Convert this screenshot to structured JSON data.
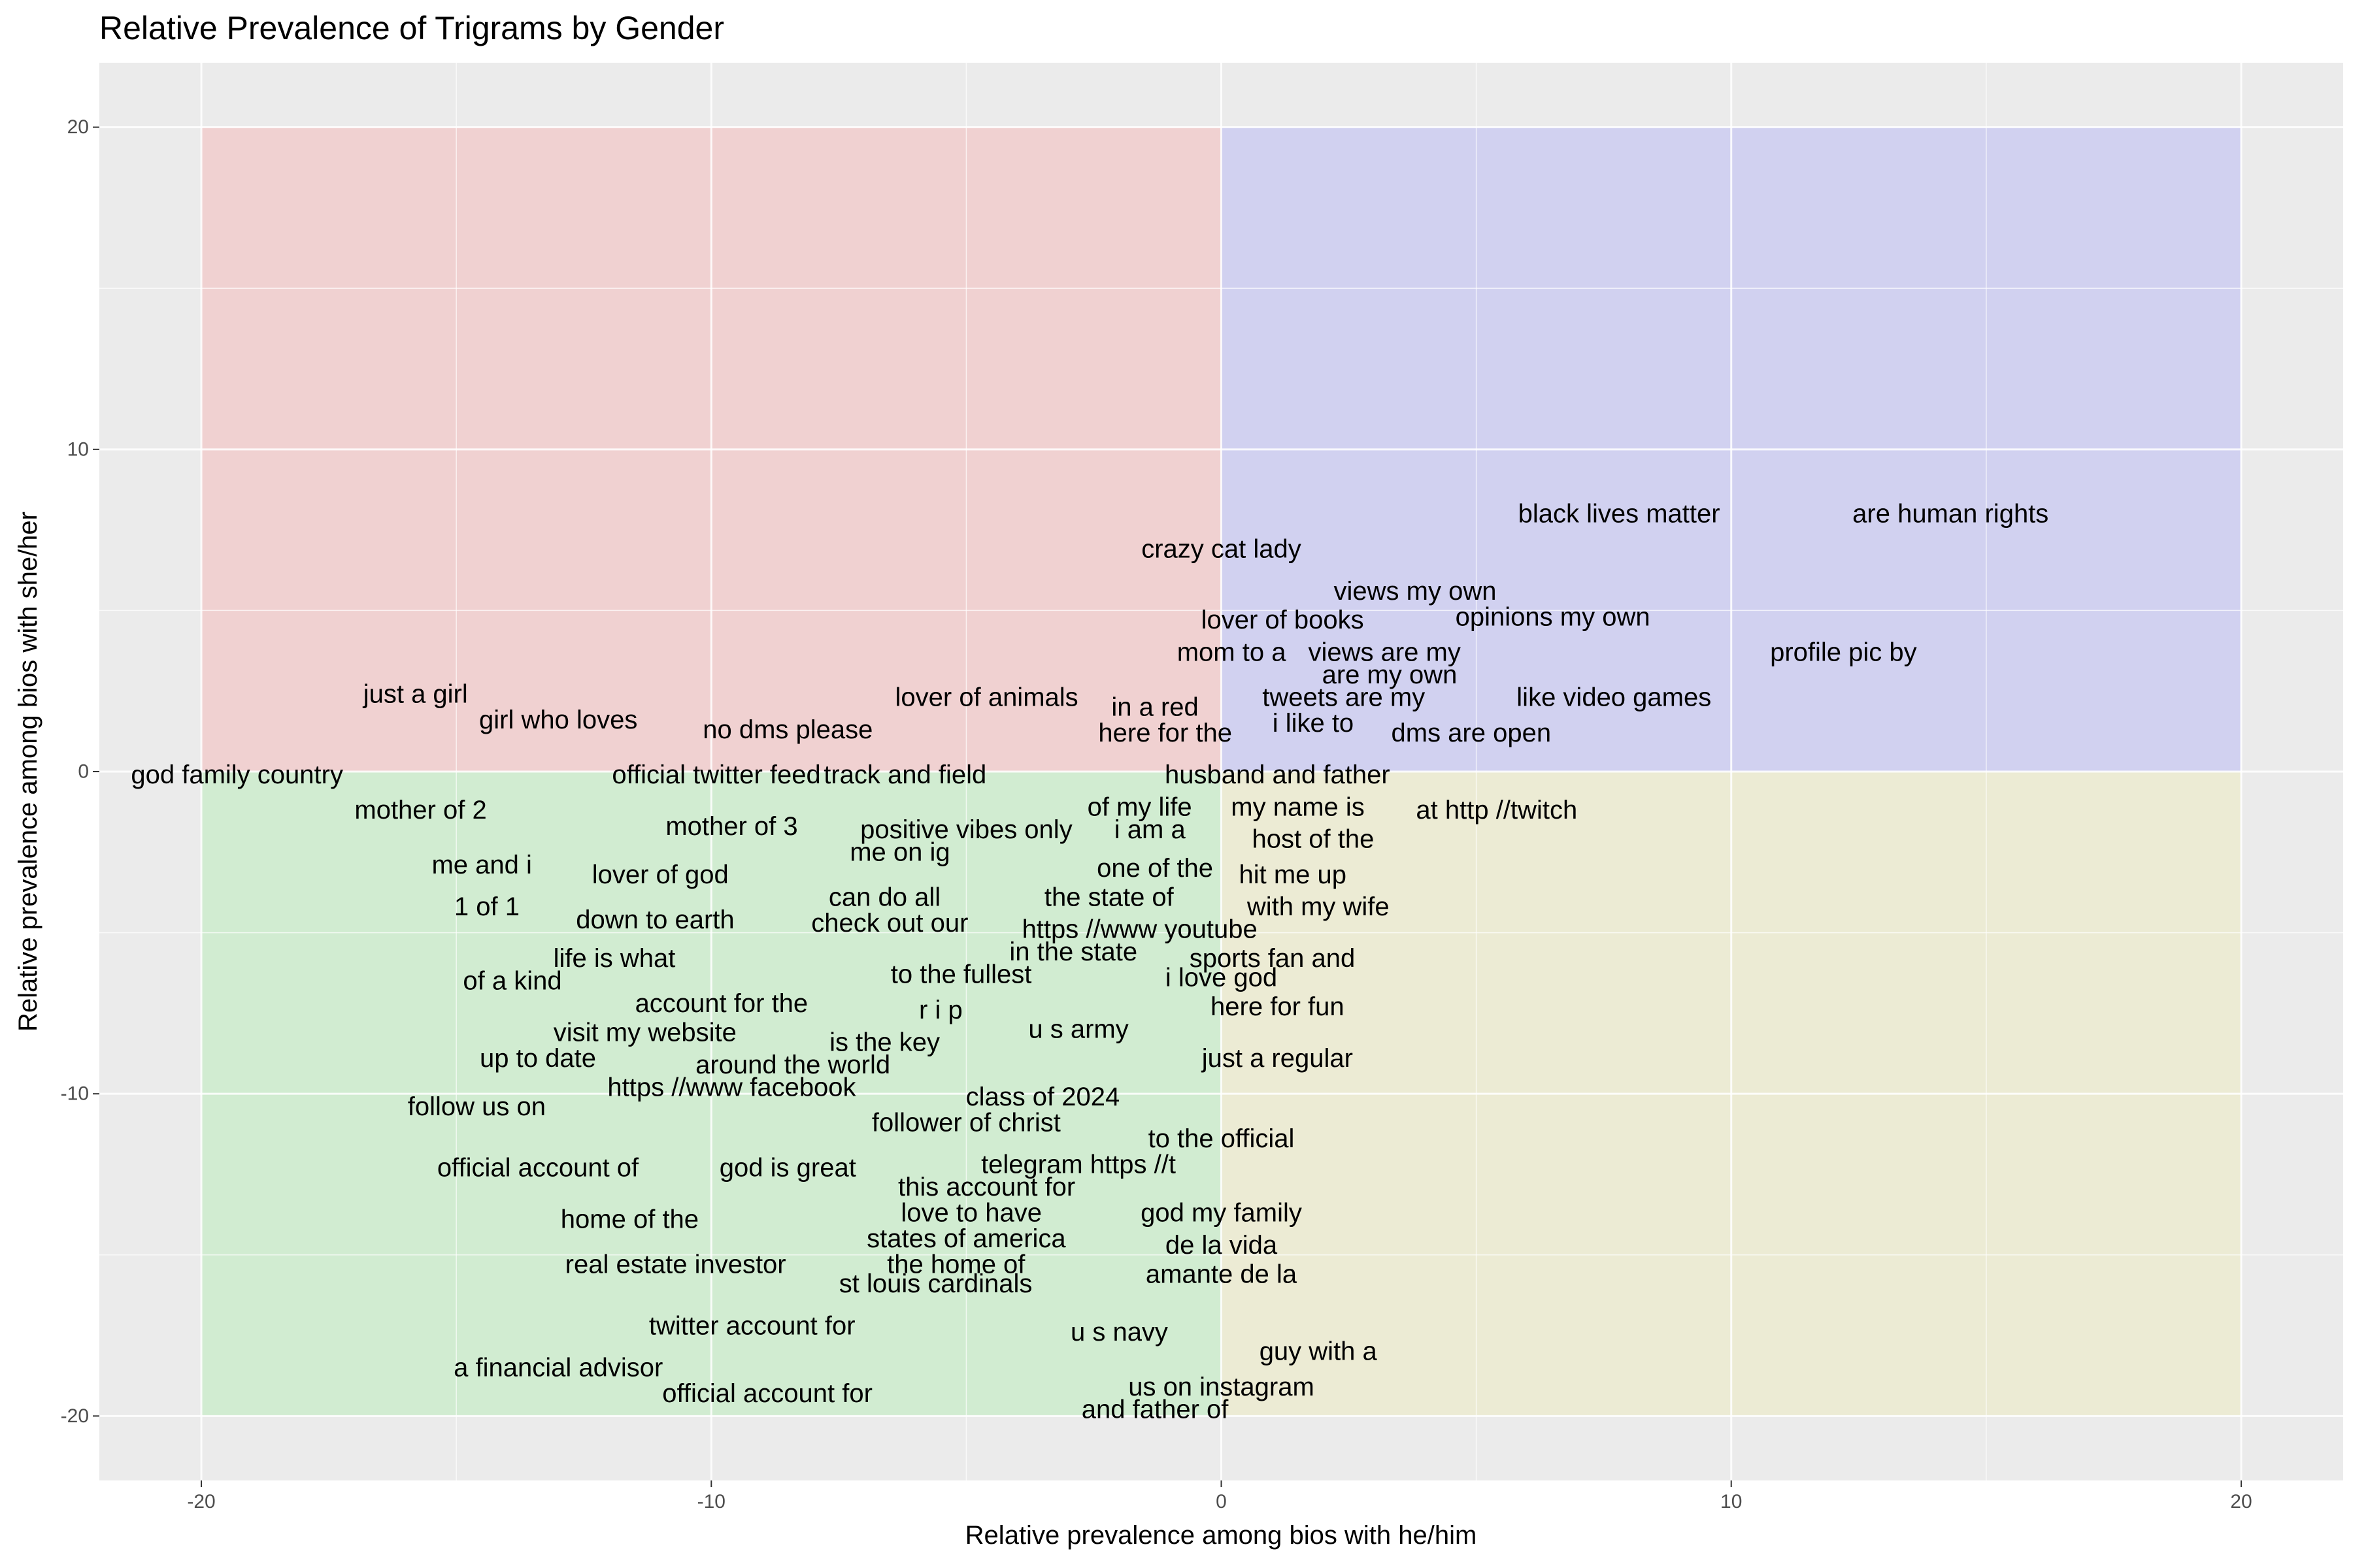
{
  "chart_data": {
    "type": "scatter",
    "title": "Relative Prevalence of Trigrams by Gender",
    "xlabel": "Relative prevalence among bios with he/him",
    "ylabel": "Relative prevalence among bios with she/her",
    "xlim": [
      -22,
      22
    ],
    "ylim": [
      -22,
      22
    ],
    "xticks": [
      -20,
      -10,
      0,
      10,
      20
    ],
    "yticks": [
      -20,
      -10,
      0,
      10,
      20
    ],
    "xtick_labels": [
      "-20",
      "-10",
      "0",
      "10",
      "20"
    ],
    "ytick_labels": [
      "-20",
      "-10",
      "0",
      "10",
      "20"
    ],
    "grid": true,
    "background_color": "#ebebeb",
    "quadrants": [
      {
        "x": [
          -20,
          0
        ],
        "y": [
          0,
          20
        ],
        "color": "#f4c0c0"
      },
      {
        "x": [
          0,
          20
        ],
        "y": [
          0,
          20
        ],
        "color": "#c0c0f4"
      },
      {
        "x": [
          -20,
          0
        ],
        "y": [
          -20,
          0
        ],
        "color": "#c0ecc0"
      },
      {
        "x": [
          0,
          20
        ],
        "y": [
          -20,
          0
        ],
        "color": "#ecebc4"
      }
    ],
    "points": [
      {
        "label": "black lives matter",
        "x": 7.8,
        "y": 8.0
      },
      {
        "label": "are human rights",
        "x": 14.3,
        "y": 8.0
      },
      {
        "label": "crazy cat lady",
        "x": 0.0,
        "y": 6.9
      },
      {
        "label": "views my own",
        "x": 3.8,
        "y": 5.6
      },
      {
        "label": "opinions my own",
        "x": 6.5,
        "y": 4.8
      },
      {
        "label": "lover of books",
        "x": 1.2,
        "y": 4.7
      },
      {
        "label": "mom to a",
        "x": 0.2,
        "y": 3.7
      },
      {
        "label": "views are my",
        "x": 3.2,
        "y": 3.7
      },
      {
        "label": "profile pic by",
        "x": 12.2,
        "y": 3.7
      },
      {
        "label": "are my own",
        "x": 3.3,
        "y": 3.0
      },
      {
        "label": "just a girl",
        "x": -15.8,
        "y": 2.4
      },
      {
        "label": "lover of animals",
        "x": -4.6,
        "y": 2.3
      },
      {
        "label": "tweets are my",
        "x": 2.4,
        "y": 2.3
      },
      {
        "label": "like video games",
        "x": 7.7,
        "y": 2.3
      },
      {
        "label": "in a red",
        "x": -1.3,
        "y": 2.0
      },
      {
        "label": "girl who loves",
        "x": -13.0,
        "y": 1.6
      },
      {
        "label": "i like to",
        "x": 1.8,
        "y": 1.5
      },
      {
        "label": "no dms please",
        "x": -8.5,
        "y": 1.3
      },
      {
        "label": "here for the",
        "x": -1.1,
        "y": 1.2
      },
      {
        "label": "dms are open",
        "x": 4.9,
        "y": 1.2
      },
      {
        "label": "god family country",
        "x": -19.3,
        "y": -0.1
      },
      {
        "label": "official twitter feed",
        "x": -9.9,
        "y": -0.1
      },
      {
        "label": "track and field",
        "x": -6.2,
        "y": -0.1
      },
      {
        "label": "husband and father",
        "x": 1.1,
        "y": -0.1
      },
      {
        "label": "mother of 2",
        "x": -15.7,
        "y": -1.2
      },
      {
        "label": "of my life",
        "x": -1.6,
        "y": -1.1
      },
      {
        "label": "my name is",
        "x": 1.5,
        "y": -1.1
      },
      {
        "label": "at http //twitch",
        "x": 5.4,
        "y": -1.2
      },
      {
        "label": "mother of 3",
        "x": -9.6,
        "y": -1.7
      },
      {
        "label": "positive vibes only",
        "x": -5.0,
        "y": -1.8
      },
      {
        "label": "i am a",
        "x": -1.4,
        "y": -1.8
      },
      {
        "label": "host of the",
        "x": 1.8,
        "y": -2.1
      },
      {
        "label": "me on ig",
        "x": -6.3,
        "y": -2.5
      },
      {
        "label": "me and i",
        "x": -14.5,
        "y": -2.9
      },
      {
        "label": "one of the",
        "x": -1.3,
        "y": -3.0
      },
      {
        "label": "lover of god",
        "x": -11.0,
        "y": -3.2
      },
      {
        "label": "hit me up",
        "x": 1.4,
        "y": -3.2
      },
      {
        "label": "can do all",
        "x": -6.6,
        "y": -3.9
      },
      {
        "label": "the state of",
        "x": -2.2,
        "y": -3.9
      },
      {
        "label": "1 of 1",
        "x": -14.4,
        "y": -4.2
      },
      {
        "label": "with my wife",
        "x": 1.9,
        "y": -4.2
      },
      {
        "label": "down to earth",
        "x": -11.1,
        "y": -4.6
      },
      {
        "label": "check out our",
        "x": -6.5,
        "y": -4.7
      },
      {
        "label": "https //www youtube",
        "x": -1.6,
        "y": -4.9
      },
      {
        "label": "in the state",
        "x": -2.9,
        "y": -5.6
      },
      {
        "label": "life is what",
        "x": -11.9,
        "y": -5.8
      },
      {
        "label": "sports fan and",
        "x": 1.0,
        "y": -5.8
      },
      {
        "label": "of a kind",
        "x": -13.9,
        "y": -6.5
      },
      {
        "label": "to the fullest",
        "x": -5.1,
        "y": -6.3
      },
      {
        "label": "i love god",
        "x": 0.0,
        "y": -6.4
      },
      {
        "label": "account for the",
        "x": -9.8,
        "y": -7.2
      },
      {
        "label": "here for fun",
        "x": 1.1,
        "y": -7.3
      },
      {
        "label": "r i p",
        "x": -5.5,
        "y": -7.4
      },
      {
        "label": "visit my website",
        "x": -11.3,
        "y": -8.1
      },
      {
        "label": "u s army",
        "x": -2.8,
        "y": -8.0
      },
      {
        "label": "is the key",
        "x": -6.6,
        "y": -8.4
      },
      {
        "label": "up to date",
        "x": -13.4,
        "y": -8.9
      },
      {
        "label": "just a regular",
        "x": 1.1,
        "y": -8.9
      },
      {
        "label": "around the world",
        "x": -8.4,
        "y": -9.1
      },
      {
        "label": "https //www facebook",
        "x": -9.6,
        "y": -9.8
      },
      {
        "label": "class of 2024",
        "x": -3.5,
        "y": -10.1
      },
      {
        "label": "follow us on",
        "x": -14.6,
        "y": -10.4
      },
      {
        "label": "follower of christ",
        "x": -5.0,
        "y": -10.9
      },
      {
        "label": "to the official",
        "x": 0.0,
        "y": -11.4
      },
      {
        "label": "official account of",
        "x": -13.4,
        "y": -12.3
      },
      {
        "label": "god is great",
        "x": -8.5,
        "y": -12.3
      },
      {
        "label": "telegram https //t",
        "x": -2.8,
        "y": -12.2
      },
      {
        "label": "this account for",
        "x": -4.6,
        "y": -12.9
      },
      {
        "label": "love to have",
        "x": -4.9,
        "y": -13.7
      },
      {
        "label": "god my family",
        "x": 0.0,
        "y": -13.7
      },
      {
        "label": "home of the",
        "x": -11.6,
        "y": -13.9
      },
      {
        "label": "states of america",
        "x": -5.0,
        "y": -14.5
      },
      {
        "label": "de la vida",
        "x": 0.0,
        "y": -14.7
      },
      {
        "label": "the home of",
        "x": -5.2,
        "y": -15.3
      },
      {
        "label": "real estate investor",
        "x": -10.7,
        "y": -15.3
      },
      {
        "label": "amante de la",
        "x": 0.0,
        "y": -15.6
      },
      {
        "label": "st louis cardinals",
        "x": -5.6,
        "y": -15.9
      },
      {
        "label": "twitter account for",
        "x": -9.2,
        "y": -17.2
      },
      {
        "label": "u s navy",
        "x": -2.0,
        "y": -17.4
      },
      {
        "label": "guy with a",
        "x": 1.9,
        "y": -18.0
      },
      {
        "label": "a financial advisor",
        "x": -13.0,
        "y": -18.5
      },
      {
        "label": "us on instagram",
        "x": 0.0,
        "y": -19.1
      },
      {
        "label": "official account for",
        "x": -8.9,
        "y": -19.3
      },
      {
        "label": "and father of",
        "x": -1.3,
        "y": -19.8
      }
    ]
  }
}
